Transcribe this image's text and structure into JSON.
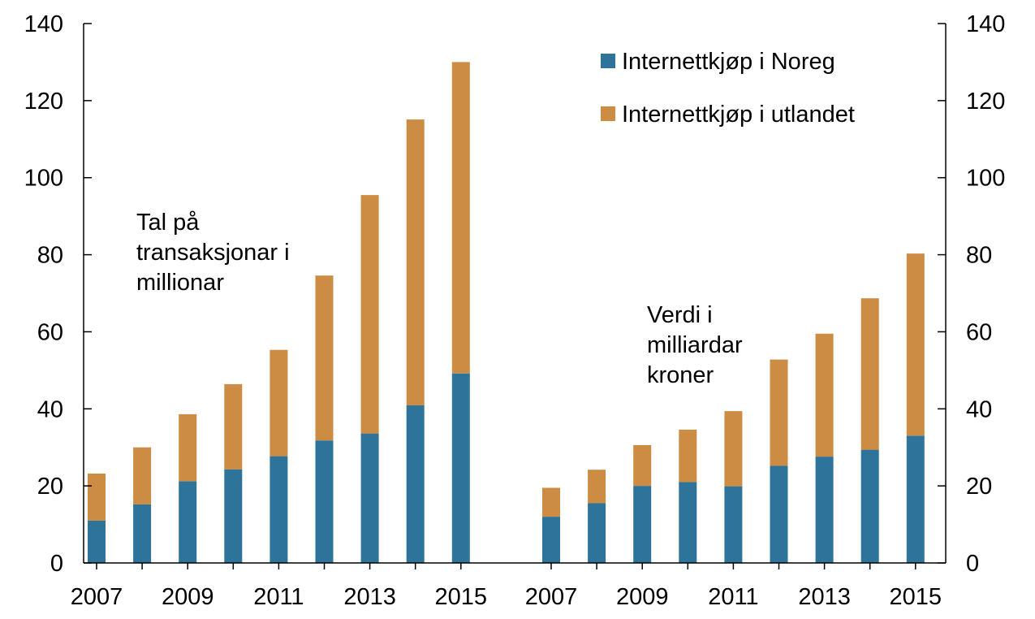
{
  "colors": {
    "noreg": "#2e7399",
    "utlandet": "#cd8c43",
    "axis": "#000000"
  },
  "legend": [
    {
      "label": "Internettkjøp i Noreg",
      "color": "#2e7399"
    },
    {
      "label": "Internettkjøp i utlandet",
      "color": "#cd8c43"
    }
  ],
  "annotations": {
    "left": [
      "Tal på",
      "transaksjonar i",
      "millionar"
    ],
    "right": [
      "Verdi i",
      "milliardar",
      "kroner"
    ]
  },
  "chart_data": {
    "type": "bar",
    "stacked": true,
    "ylim": [
      0,
      140
    ],
    "yticks": [
      0,
      20,
      40,
      60,
      80,
      100,
      120,
      140
    ],
    "secondary_yticks": [
      0,
      20,
      40,
      60,
      80,
      100,
      120,
      140
    ],
    "xtick_labels": [
      "2007",
      "2009",
      "2011",
      "2013",
      "2015",
      "2007",
      "2009",
      "2011",
      "2013",
      "2015"
    ],
    "legend_position": "top-right",
    "groups": [
      {
        "categories": [
          "2007",
          "2008",
          "2009",
          "2010",
          "2011",
          "2012",
          "2013",
          "2014",
          "2015"
        ],
        "series": [
          {
            "name": "Internettkjøp i Noreg",
            "values": [
              11,
              15.2,
              21.2,
              24.3,
              27.7,
              31.8,
              33.6,
              40.9,
              49.2
            ]
          },
          {
            "name": "Internettkjøp i utlandet",
            "values": [
              12.2,
              14.8,
              17.4,
              22.1,
              27.6,
              42.8,
              61.9,
              74.2,
              80.8
            ]
          }
        ]
      },
      {
        "categories": [
          "2007",
          "2008",
          "2009",
          "2010",
          "2011",
          "2012",
          "2013",
          "2014",
          "2015"
        ],
        "series": [
          {
            "name": "Internettkjøp i Noreg",
            "values": [
              12,
              15.5,
              20,
              21,
              19.9,
              25.2,
              27.6,
              29.4,
              33
            ]
          },
          {
            "name": "Internettkjøp i utlandet",
            "values": [
              7.5,
              8.7,
              10.6,
              13.6,
              19.5,
              27.6,
              31.9,
              39.3,
              47.3
            ]
          }
        ]
      }
    ]
  }
}
